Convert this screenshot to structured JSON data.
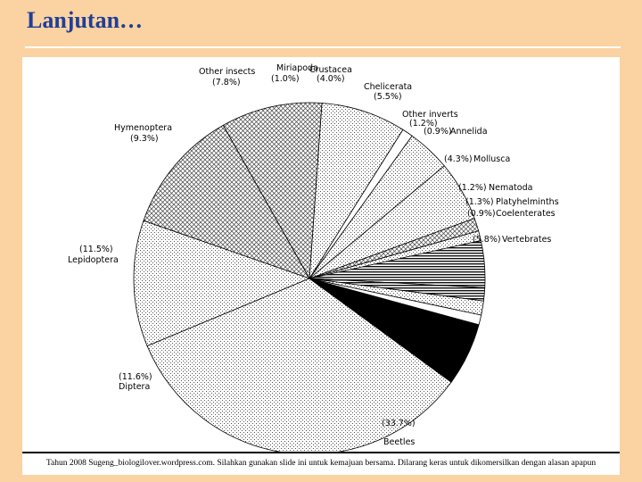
{
  "header": {
    "title": "Lanjutan…"
  },
  "chart_data": {
    "type": "pie",
    "title": "",
    "slices": [
      {
        "name": "Mollusca",
        "pct": "(4.3%)",
        "value": 4.3,
        "pattern": "horiz"
      },
      {
        "name": "Annelida",
        "pct": "(0.9%)",
        "value": 0.9,
        "pattern": "dots"
      },
      {
        "name": "Other inverts",
        "pct": "(1.2%)",
        "value": 1.2,
        "pattern": "cross"
      },
      {
        "name": "Chelicerata",
        "pct": "(5.5%)",
        "value": 5.5,
        "pattern": "dots"
      },
      {
        "name": "Crustacea",
        "pct": "(4.0%)",
        "value": 4.0,
        "pattern": "dots"
      },
      {
        "name": "Miriapoda",
        "pct": "(1.0%)",
        "value": 1.0,
        "pattern": "white"
      },
      {
        "name": "Other insects",
        "pct": "(7.8%)",
        "value": 7.8,
        "pattern": "dots"
      },
      {
        "name": "Hymenoptera",
        "pct": "(9.3%)",
        "value": 9.3,
        "pattern": "cross"
      },
      {
        "name": "Lepidoptera",
        "pct": "(11.5%)",
        "value": 11.5,
        "pattern": "cross"
      },
      {
        "name": "Diptera",
        "pct": "(11.6%)",
        "value": 11.6,
        "pattern": "dots"
      },
      {
        "name": "Beetles",
        "pct": "(33.7%)",
        "value": 33.7,
        "pattern": "dots"
      },
      {
        "name": "Vertebrates",
        "pct": "(5.8%)",
        "value": 5.8,
        "pattern": "black"
      },
      {
        "name": "Coelenterates",
        "pct": "(0.9%)",
        "value": 0.9,
        "pattern": "white"
      },
      {
        "name": "Platyhelminths",
        "pct": "(1.3%)",
        "value": 1.3,
        "pattern": "dots"
      },
      {
        "name": "Nematoda",
        "pct": "(1.2%)",
        "value": 1.2,
        "pattern": "horiz"
      }
    ]
  },
  "footer": {
    "text": "Tahun 2008 Sugeng_biologilover.wordpress.com. Silahkan gunakan slide ini untuk kemajuan bersama. Dilarang keras untuk dikomersilkan dengan alasan apapun"
  }
}
